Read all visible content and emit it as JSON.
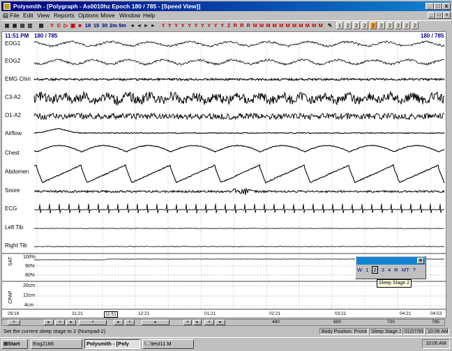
{
  "window": {
    "title": "Polysmith - [Polygraph - As0010hz    Epoch 180 / 785 - [Speed View]]",
    "controls": [
      "_",
      "□",
      "x"
    ]
  },
  "menu": [
    "File",
    "Edit",
    "View",
    "Reports",
    "Options",
    "Move",
    "Window",
    "Help"
  ],
  "toolbar": {
    "speed_labels": [
      "18",
      "15",
      "30",
      "2m",
      "5m"
    ],
    "nav_glyphs": [
      "◄",
      "◄",
      "►",
      "►"
    ],
    "stage_buttons": [
      "1",
      "2",
      "2",
      "2",
      "2",
      "2",
      "2",
      "2",
      "2",
      "2"
    ]
  },
  "chart": {
    "time_start": "11:51 PM",
    "epoch_left": "180 / 785",
    "epoch_right": "180 / 785",
    "channels": [
      "EOG1",
      "EOG2",
      "EMG Chin",
      "C3-A2",
      "O1-A2",
      "Airflow",
      "Chest",
      "Abdomen",
      "Snore",
      "ECG",
      "Left Tib",
      "Right Tib"
    ],
    "sat_axis_title": "SAT",
    "sat_ticks": [
      "100%",
      "90%",
      "80%"
    ],
    "cpap_axis_title": "CPAP",
    "cpap_ticks": [
      "20cm",
      "12cm",
      "4cm"
    ],
    "time_ticks": [
      "29:18",
      "11:21",
      "11:51",
      "12:21",
      "01:21",
      "02:21",
      "03:21",
      "04:21",
      "04:53"
    ]
  },
  "stage_popup": {
    "buttons": [
      "W",
      "1",
      "2",
      "3",
      "4",
      "R",
      "MT",
      "?"
    ],
    "tooltip": "Sleep Stage 2"
  },
  "hscroll": {
    "ticks": [
      "480",
      "600",
      "720",
      "785"
    ]
  },
  "status": {
    "message": "Set the current sleep stage to 2  (Numpad-2)",
    "position": "Body Position: Prone",
    "stage": "Sleep Stage 2",
    "date": "01/07/95",
    "time": "10:06 AM"
  },
  "taskbar": {
    "start": "Start",
    "items": [
      "Eog2186",
      "Polysmith - [Poly",
      "\\...\\test11.M"
    ],
    "clock": "10:06 AM"
  }
}
